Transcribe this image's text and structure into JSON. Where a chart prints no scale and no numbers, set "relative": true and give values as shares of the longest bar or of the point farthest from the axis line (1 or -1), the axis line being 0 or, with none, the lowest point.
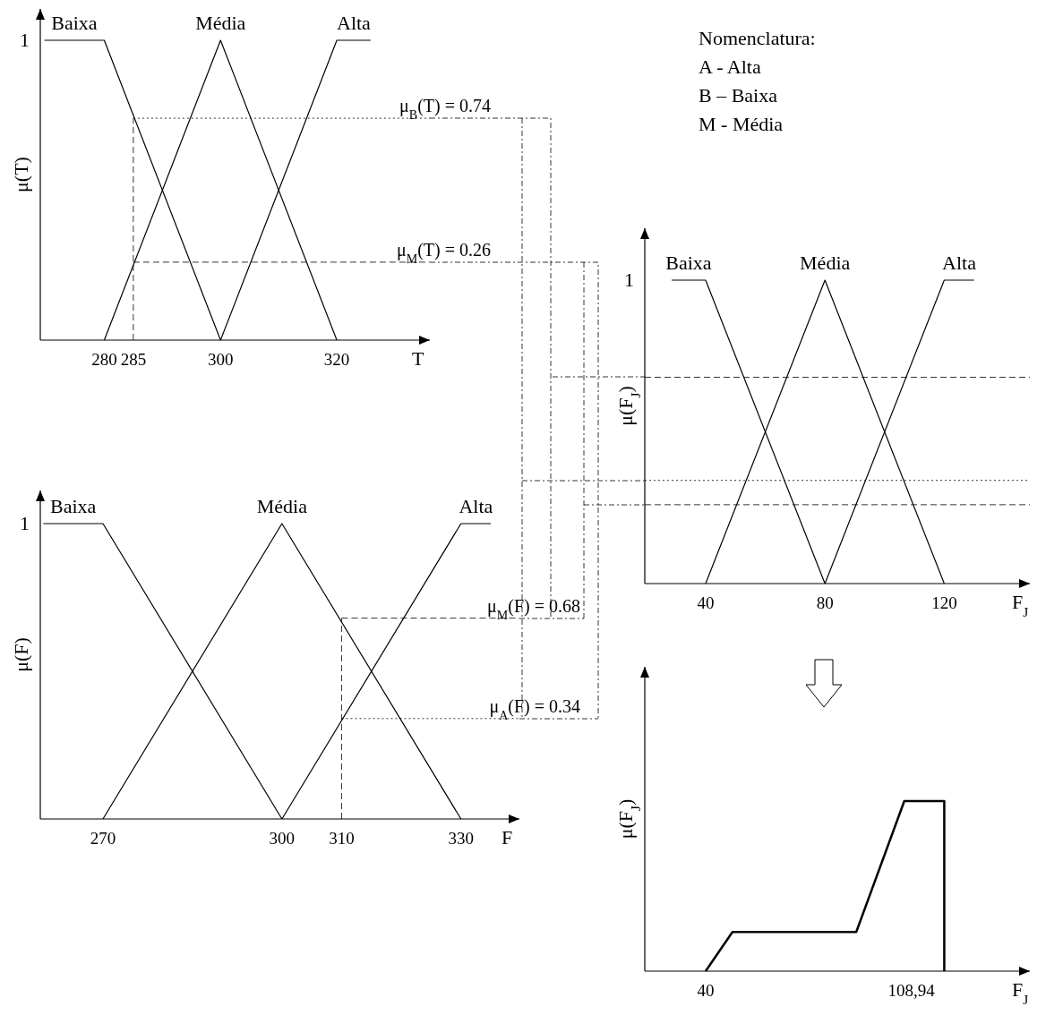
{
  "chart_data": [
    {
      "type": "line",
      "relative": true,
      "xlabel": "T",
      "ylabel": "μ(T)",
      "xlim": [
        269,
        336
      ],
      "xticks": [
        280,
        285,
        300,
        320
      ],
      "series": [
        {
          "name": "Baixa",
          "color": "#000000",
          "x": [
            269.7,
            280,
            300
          ],
          "values": [
            1,
            1,
            0
          ]
        },
        {
          "name": "Média",
          "color": "#000000",
          "x": [
            280,
            300,
            320
          ],
          "values": [
            0,
            1,
            0
          ]
        },
        {
          "name": "Alta",
          "color": "#000000",
          "x": [
            300,
            320,
            325.8
          ],
          "values": [
            0,
            1,
            1
          ]
        }
      ],
      "ref_lines": [
        {
          "axis": "x",
          "value": 285,
          "line_style": "dashed"
        },
        {
          "axis": "y",
          "value": 0.74,
          "label": "μ$_{B}$(T) = 0.74",
          "line_style": "dotted"
        },
        {
          "axis": "y",
          "value": 0.26,
          "label": "μ$_{M}$(T) = 0.26",
          "line_style": "dashed"
        }
      ],
      "annotations": [
        "1",
        "Nomenclatura:",
        "A - Alta",
        "B – Baixa",
        "M - Média"
      ]
    },
    {
      "type": "line",
      "relative": true,
      "xlabel": "F$_{J}$",
      "ylabel": "μ(F$_{J}$)",
      "xlim": [
        19.6,
        148.7
      ],
      "xticks": [
        40,
        80,
        120
      ],
      "annotations": [
        "1"
      ],
      "series": [
        {
          "name": "Baixa",
          "color": "#000000",
          "x": [
            28.6,
            40,
            80
          ],
          "values": [
            1,
            1,
            0
          ]
        },
        {
          "name": "Média",
          "color": "#000000",
          "x": [
            40,
            80,
            120
          ],
          "values": [
            0,
            1,
            0
          ]
        },
        {
          "name": "Alta",
          "color": "#000000",
          "x": [
            80,
            120,
            130
          ],
          "values": [
            0,
            1,
            1
          ]
        }
      ],
      "ref_lines": [
        {
          "axis": "y",
          "value": 0.68,
          "line_style": "dashed"
        },
        {
          "axis": "y",
          "value": 0.34,
          "line_style": "dotted"
        },
        {
          "axis": "y",
          "value": 0.26,
          "line_style": "dashed"
        }
      ]
    },
    {
      "type": "line",
      "relative": true,
      "xlabel": "F",
      "ylabel": "μ(F)",
      "xlim": [
        259.5,
        339.8
      ],
      "xticks": [
        270,
        300,
        310,
        330
      ],
      "annotations": [
        "1"
      ],
      "series": [
        {
          "name": "Baixa",
          "color": "#000000",
          "x": [
            260,
            270,
            300
          ],
          "values": [
            1,
            1,
            0
          ]
        },
        {
          "name": "Média",
          "color": "#000000",
          "x": [
            270,
            300,
            330
          ],
          "values": [
            0,
            1,
            0
          ]
        },
        {
          "name": "Alta",
          "color": "#000000",
          "x": [
            300,
            330,
            335
          ],
          "values": [
            0,
            1,
            1
          ]
        }
      ],
      "ref_lines": [
        {
          "axis": "x",
          "value": 310,
          "line_style": "dashed"
        },
        {
          "axis": "y",
          "value": 0.68,
          "label": "μ$_{M}$(F) = 0.68",
          "line_style": "dashed"
        },
        {
          "axis": "y",
          "value": 0.34,
          "label": "μ$_{A}$(F) = 0.34",
          "line_style": "dotted"
        }
      ]
    },
    {
      "type": "line",
      "relative": true,
      "xlabel": "F$_{J}$",
      "ylabel": "μ(F$_{J}$)",
      "xlim": [
        19.6,
        148.7
      ],
      "xticks": [
        40,
        {
          "value": 108.94,
          "label": "108,94"
        }
      ],
      "series": [
        {
          "color": "#000000",
          "x": [
            40,
            49,
            90.5,
            106.6,
            120,
            120
          ],
          "values": [
            0,
            0.23,
            0.23,
            1,
            1,
            0
          ]
        }
      ]
    }
  ]
}
